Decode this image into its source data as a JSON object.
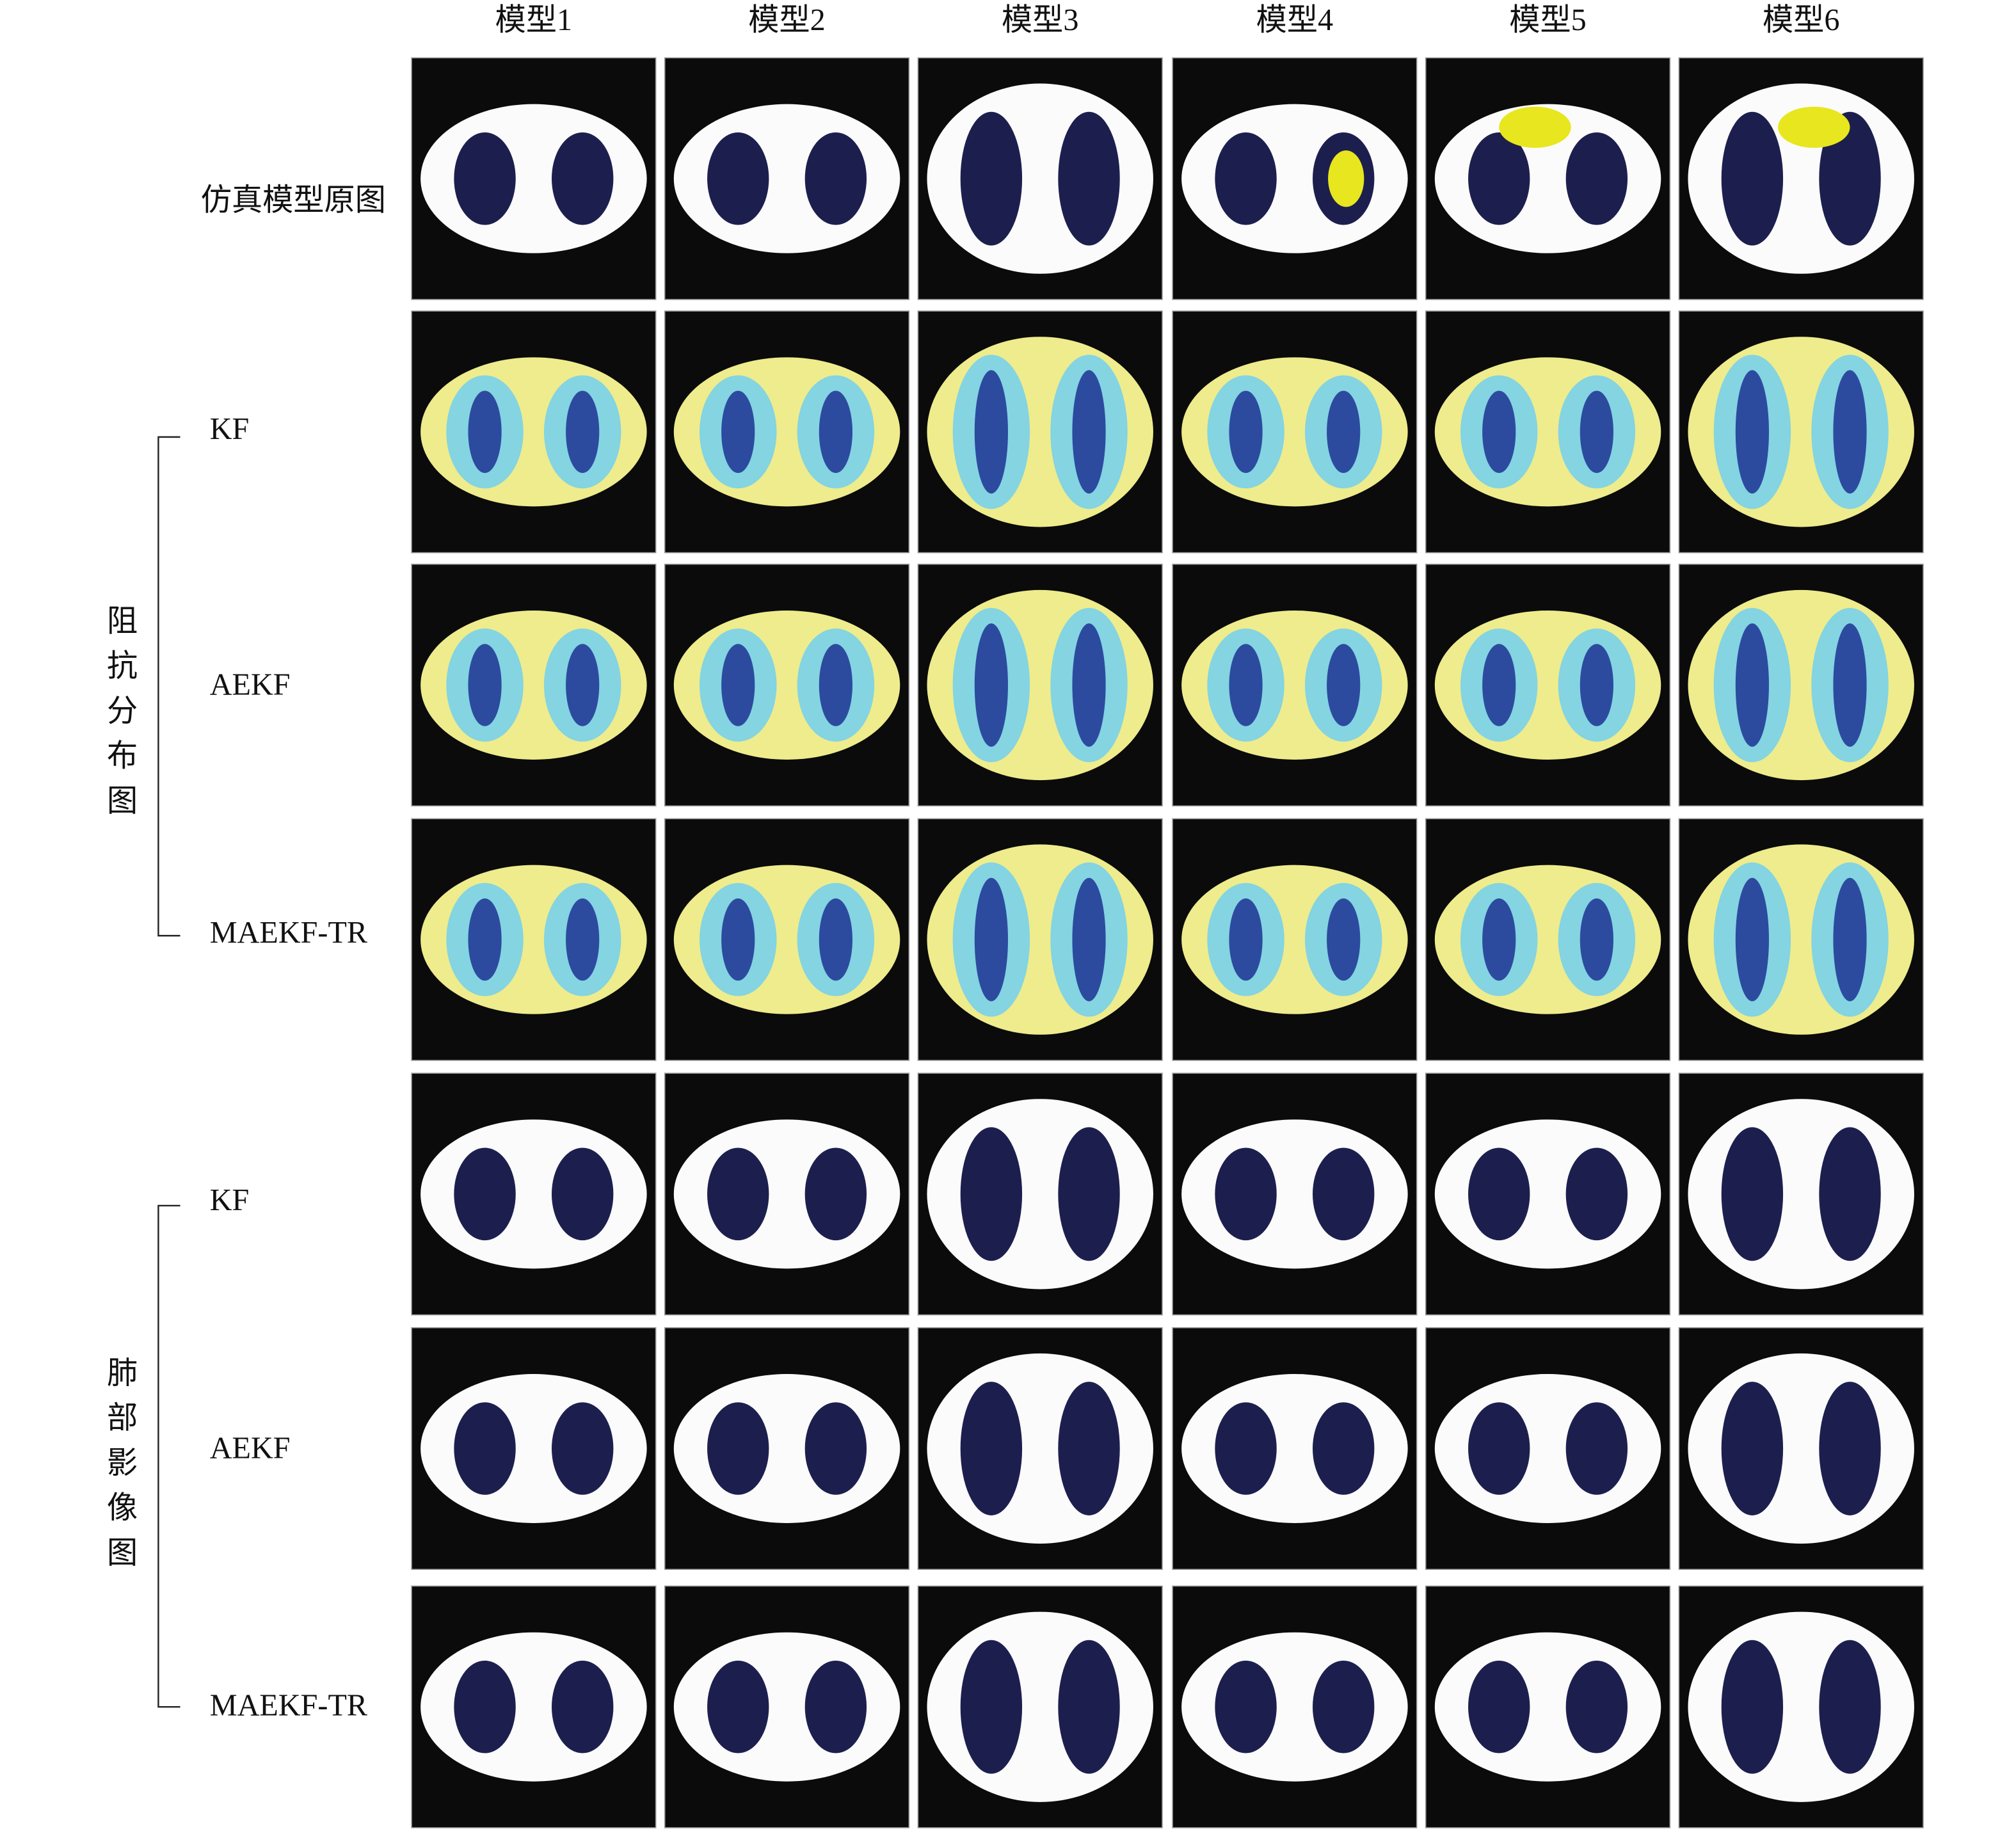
{
  "columns": [
    "模型1",
    "模型2",
    "模型3",
    "模型4",
    "模型5",
    "模型6"
  ],
  "rows": [
    "仿真模型原图",
    "KF",
    "AEKF",
    "MAEKF-TR",
    "KF",
    "AEKF",
    "MAEKF-TR"
  ],
  "groups": [
    "阻抗分布图",
    "肺部影像图"
  ]
}
